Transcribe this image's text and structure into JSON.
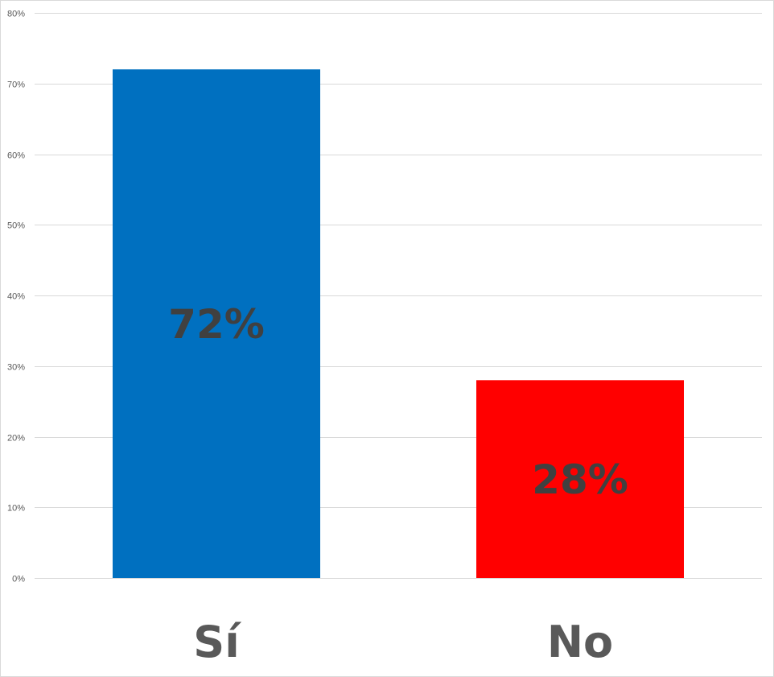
{
  "chart_data": {
    "type": "bar",
    "categories": [
      "Sí",
      "No"
    ],
    "values": [
      72,
      28
    ],
    "data_labels": [
      "72%",
      "28%"
    ],
    "colors": [
      "#0070C0",
      "#FF0000"
    ],
    "ylim": [
      0,
      80
    ],
    "y_ticks": [
      0,
      10,
      20,
      30,
      40,
      50,
      60,
      70,
      80
    ],
    "y_tick_labels": [
      "0%",
      "10%",
      "20%",
      "30%",
      "40%",
      "50%",
      "60%",
      "70%",
      "80%"
    ],
    "grid": true,
    "legend": false,
    "title": "",
    "xlabel": "",
    "ylabel": ""
  }
}
